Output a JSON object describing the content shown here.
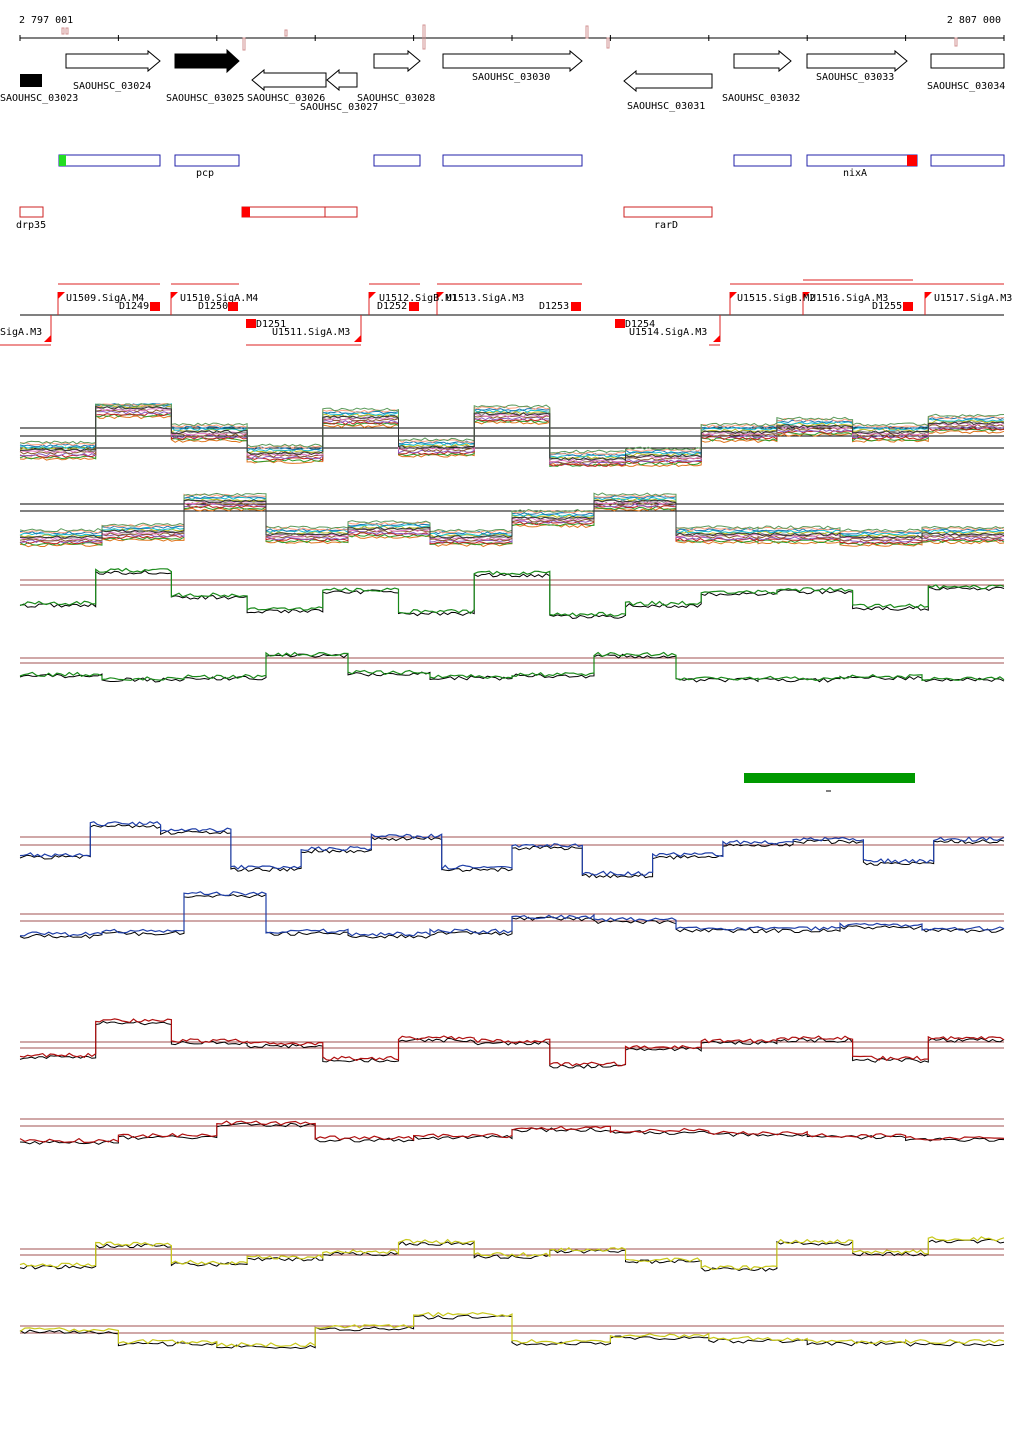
{
  "coordinates": {
    "start": "2 797 001",
    "end": "2 807 000"
  },
  "genes": [
    {
      "label": "SAOUHSC_03023",
      "strand": "+",
      "filled": true
    },
    {
      "label": "SAOUHSC_03024",
      "strand": "+",
      "filled": false
    },
    {
      "label": "SAOUHSC_03025",
      "strand": "+",
      "filled": true
    },
    {
      "label": "SAOUHSC_03026",
      "strand": "-",
      "filled": false
    },
    {
      "label": "SAOUHSC_03027",
      "strand": "-",
      "filled": false
    },
    {
      "label": "SAOUHSC_03028",
      "strand": "+",
      "filled": false
    },
    {
      "label": "SAOUHSC_03030",
      "strand": "+",
      "filled": false
    },
    {
      "label": "SAOUHSC_03031",
      "strand": "-",
      "filled": false
    },
    {
      "label": "SAOUHSC_03032",
      "strand": "+",
      "filled": false
    },
    {
      "label": "SAOUHSC_03033",
      "strand": "+",
      "filled": false
    },
    {
      "label": "SAOUHSC_03034",
      "strand": "+",
      "filled": false
    }
  ],
  "plus_annotations": [
    {
      "label": ""
    },
    {
      "label": "pcp"
    },
    {
      "label": ""
    },
    {
      "label": ""
    },
    {
      "label": ""
    },
    {
      "label": "nixA"
    },
    {
      "label": ""
    }
  ],
  "minus_annotations": [
    {
      "label": "drp35"
    },
    {
      "label": ""
    },
    {
      "label": "rarD"
    }
  ],
  "transcription_units": [
    {
      "label": "U1509.SigA.M4"
    },
    {
      "label": "U1510.SigA.M4"
    },
    {
      "label": "U1512.SigB.M1"
    },
    {
      "label": "U1513.SigA.M3"
    },
    {
      "label": "U1515.SigB.M2"
    },
    {
      "label": "U1516.SigA.M3"
    },
    {
      "label": "U1517.SigA.M3"
    },
    {
      "label": "SigA.M3"
    },
    {
      "label": "U1511.SigA.M3"
    },
    {
      "label": "U1514.SigA.M3"
    }
  ],
  "downshifts": [
    {
      "label": "D1249"
    },
    {
      "label": "D1250"
    },
    {
      "label": "D1251"
    },
    {
      "label": "D1252"
    },
    {
      "label": "D1253"
    },
    {
      "label": "D1254"
    },
    {
      "label": "D1255"
    }
  ],
  "colors": {
    "gene_outline": "#000000",
    "plus_box": "#2222aa",
    "minus_box": "#cc2222",
    "marker": "#ff0000",
    "start_marker": "#22dd22",
    "threshold_line": "#a05050",
    "scale_bar": "#009900",
    "blue_track": "#1f3fa8",
    "green_track": "#1a8a1a",
    "red_track": "#b01010",
    "yellow_track": "#c8c81a"
  },
  "track_colors": [
    "#e0761c",
    "#2b9c2b",
    "#c02020",
    "#8a5fbf",
    "#8b5a2b",
    "#e377c2",
    "#7f7f7f",
    "#bcbd22",
    "#17becf",
    "#1f77b4",
    "#ff9f7f",
    "#5a9a5a"
  ],
  "expression_levels": {
    "multi_plus": [
      0.25,
      0.95,
      0.55,
      0.2,
      0.8,
      0.3,
      0.85,
      0.1,
      0.15,
      0.55,
      0.65,
      0.55,
      0.7
    ],
    "multi_minus": [
      0.2,
      0.3,
      0.85,
      0.25,
      0.35,
      0.2,
      0.55,
      0.85,
      0.25,
      0.25,
      0.2,
      0.25
    ],
    "pair_green_plus": [
      0.3,
      0.9,
      0.45,
      0.2,
      0.55,
      0.15,
      0.85,
      0.1,
      0.3,
      0.5,
      0.55,
      0.25,
      0.6
    ],
    "pair_green_minus": [
      0.4,
      0.3,
      0.35,
      0.9,
      0.45,
      0.35,
      0.4,
      0.9,
      0.3,
      0.3,
      0.35,
      0.3
    ],
    "pair_blue_plus": [
      0.4,
      0.9,
      0.8,
      0.2,
      0.5,
      0.7,
      0.2,
      0.55,
      0.1,
      0.4,
      0.6,
      0.65,
      0.3,
      0.65
    ],
    "pair_blue_minus": [
      0.2,
      0.25,
      0.9,
      0.25,
      0.2,
      0.25,
      0.5,
      0.45,
      0.3,
      0.3,
      0.35,
      0.3
    ],
    "pair_red_plus": [
      0.35,
      0.95,
      0.6,
      0.55,
      0.3,
      0.65,
      0.6,
      0.2,
      0.5,
      0.6,
      0.65,
      0.3,
      0.65
    ],
    "pair_red_minus": [
      0.35,
      0.45,
      0.7,
      0.4,
      0.45,
      0.6,
      0.55,
      0.5,
      0.45,
      0.4
    ],
    "pair_yellow_plus": [
      0.25,
      0.65,
      0.3,
      0.4,
      0.5,
      0.7,
      0.45,
      0.55,
      0.35,
      0.2,
      0.7,
      0.5,
      0.75
    ],
    "pair_yellow_minus": [
      0.55,
      0.35,
      0.3,
      0.6,
      0.8,
      0.35,
      0.45,
      0.4,
      0.35,
      0.35
    ]
  }
}
